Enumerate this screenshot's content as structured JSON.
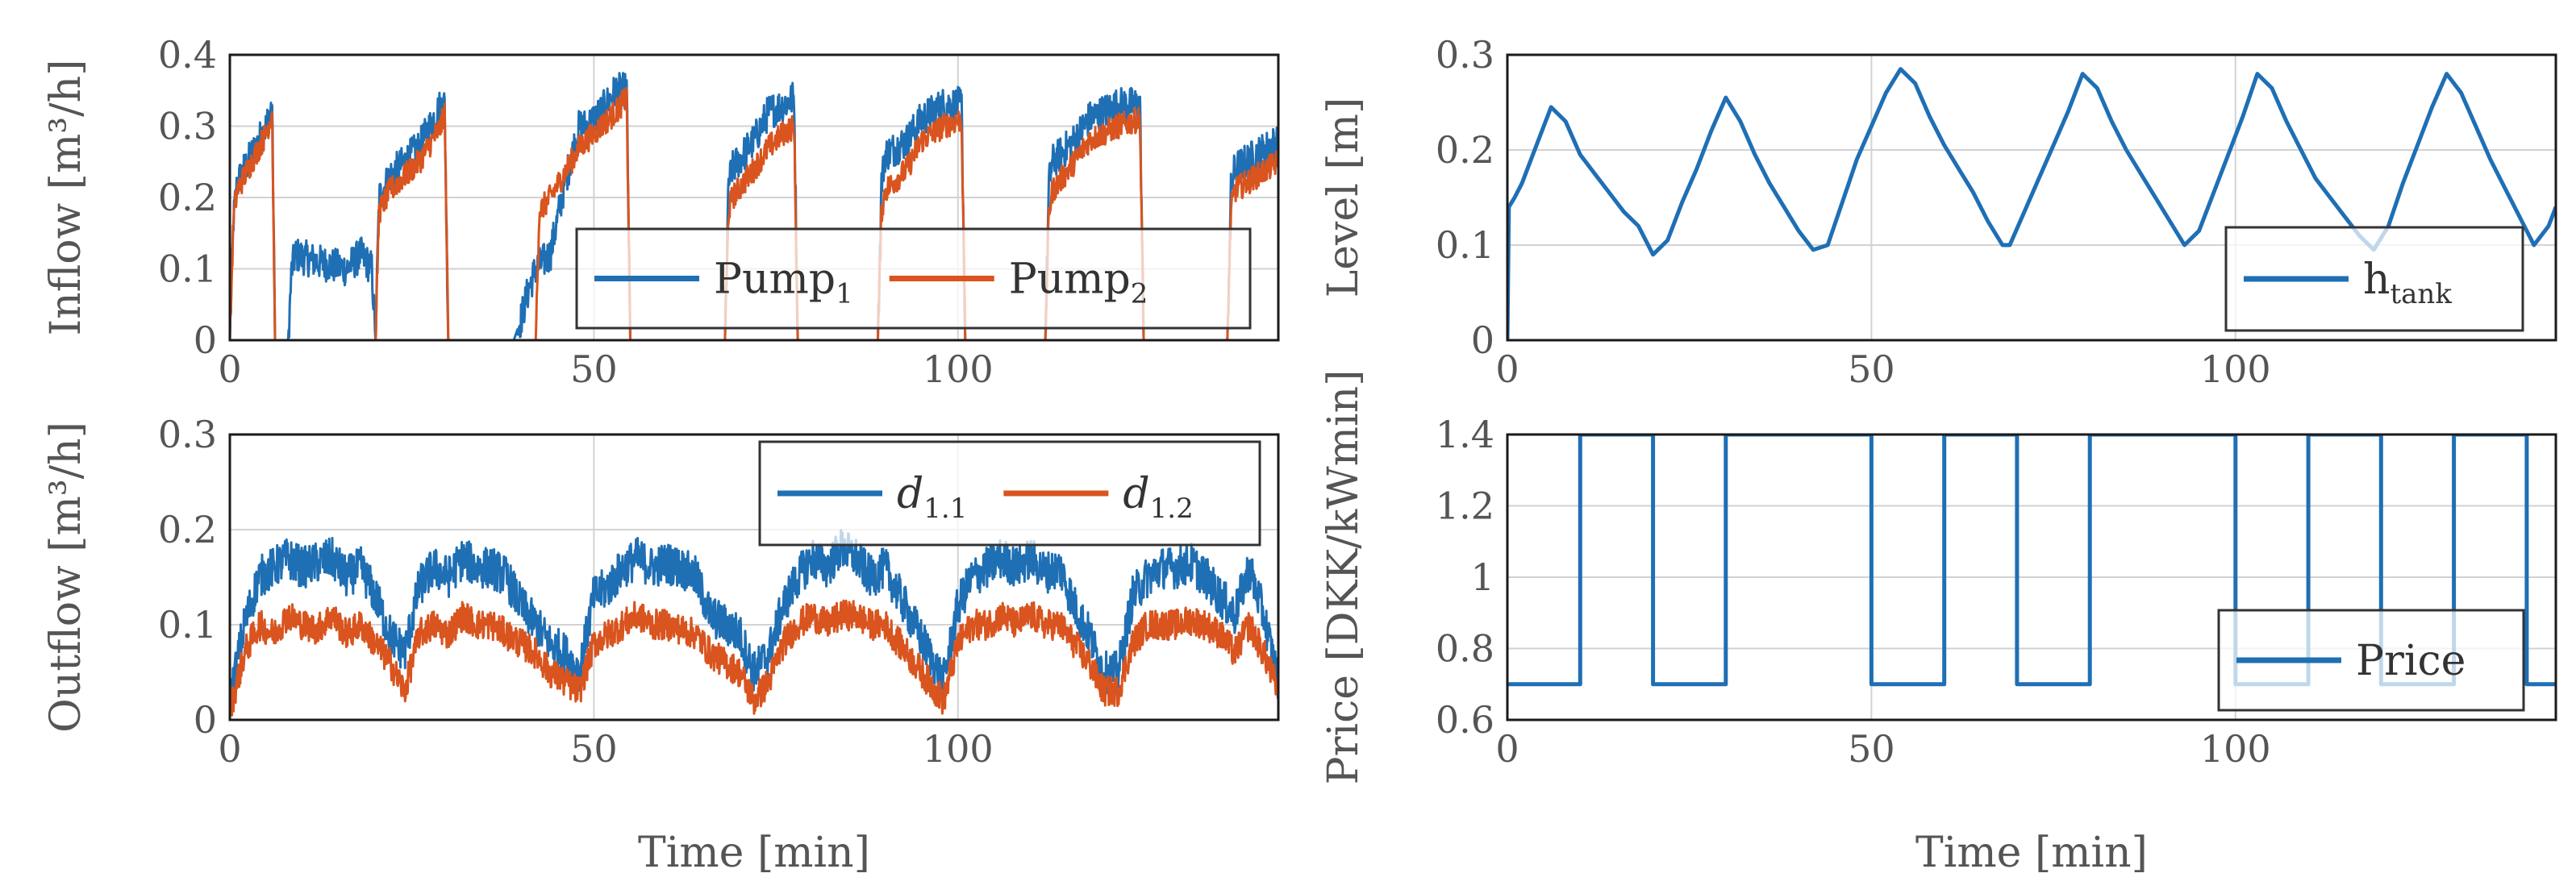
{
  "colors": {
    "blue": "#1f6fb4",
    "orange": "#d9541e"
  },
  "chart_data": [
    {
      "type": "line",
      "id": "inflow",
      "xlabel": "",
      "ylabel": "Inflow [m³/h]",
      "xlim": [
        0,
        144
      ],
      "ylim": [
        0,
        0.4
      ],
      "xticks": [
        "0",
        "50",
        "100"
      ],
      "yticks": [
        "0",
        "0.1",
        "0.2",
        "0.3",
        "0.4"
      ],
      "legend": {
        "position": "center-right",
        "entries": [
          {
            "base": "Pump",
            "sub": "1"
          },
          {
            "base": "Pump",
            "sub": "2"
          }
        ]
      },
      "series": [
        {
          "name": "Pump1",
          "color": "#1f6fb4",
          "x": [
            0,
            0.5,
            1,
            5,
            5.8,
            6.2,
            8,
            8.5,
            9,
            12,
            16,
            18,
            19.5,
            20,
            20.5,
            22,
            26,
            29,
            29.5,
            30,
            39,
            40,
            41,
            42,
            44,
            46,
            48,
            49,
            51,
            53,
            54.5,
            55,
            55.5,
            68,
            68.5,
            69,
            72,
            74,
            76,
            77.5,
            78,
            78.5,
            89,
            89.5,
            90,
            93,
            95,
            98,
            100.5,
            101,
            101.5,
            112,
            112.5,
            113,
            116,
            118,
            122,
            125,
            125.5,
            126,
            137,
            137.5,
            138,
            141,
            144
          ],
          "y": [
            0,
            0.17,
            0.22,
            0.3,
            0.33,
            0,
            0,
            0.1,
            0.12,
            0.11,
            0.1,
            0.12,
            0.1,
            0,
            0.2,
            0.23,
            0.27,
            0.33,
            0.33,
            0,
            0,
            0.03,
            0.07,
            0.1,
            0.12,
            0.22,
            0.3,
            0.3,
            0.32,
            0.35,
            0.35,
            0,
            0,
            0,
            0.22,
            0.24,
            0.28,
            0.32,
            0.33,
            0.34,
            0,
            0,
            0,
            0.22,
            0.26,
            0.28,
            0.31,
            0.33,
            0.33,
            0,
            0,
            0,
            0.22,
            0.25,
            0.28,
            0.31,
            0.33,
            0.33,
            0,
            0,
            0,
            0.21,
            0.24,
            0.26,
            0.28
          ],
          "noise": 0.025
        },
        {
          "name": "Pump2",
          "color": "#d9541e",
          "x": [
            0,
            0.5,
            1,
            5,
            5.8,
            6.2,
            20,
            20.5,
            22,
            26,
            29,
            29.5,
            30,
            42,
            42.5,
            44,
            48,
            51,
            53,
            54.5,
            55,
            55.5,
            68,
            68.5,
            69,
            72,
            74,
            76,
            77.5,
            78,
            78.5,
            89,
            89.5,
            90,
            93,
            95,
            98,
            100.5,
            101,
            101.5,
            112,
            112.5,
            113,
            116,
            118,
            122,
            125,
            125.5,
            126,
            137,
            137.5,
            138,
            141,
            144
          ],
          "y": [
            0,
            0.17,
            0.21,
            0.29,
            0.32,
            0,
            0,
            0.18,
            0.21,
            0.25,
            0.3,
            0.32,
            0,
            0,
            0.18,
            0.2,
            0.27,
            0.3,
            0.32,
            0.34,
            0,
            0,
            0,
            0.18,
            0.2,
            0.24,
            0.27,
            0.29,
            0.3,
            0,
            0,
            0,
            0.18,
            0.21,
            0.24,
            0.28,
            0.3,
            0.31,
            0,
            0,
            0,
            0.18,
            0.21,
            0.25,
            0.28,
            0.3,
            0.31,
            0,
            0,
            0,
            0.18,
            0.21,
            0.23,
            0.25
          ],
          "noise": 0.018
        }
      ]
    },
    {
      "type": "line",
      "id": "level",
      "xlabel": "",
      "ylabel": "Level [m]",
      "xlim": [
        0,
        144
      ],
      "ylim": [
        0,
        0.3
      ],
      "xticks": [
        "0",
        "50",
        "100"
      ],
      "yticks": [
        "0",
        "0.1",
        "0.2",
        "0.3"
      ],
      "legend": {
        "position": "bottom-right",
        "entries": [
          {
            "base": "h",
            "sub": "tank"
          }
        ]
      },
      "series": [
        {
          "name": "htank",
          "color": "#1f6fb4",
          "x": [
            0,
            0.2,
            0.6,
            1,
            2,
            4,
            6,
            8,
            10,
            12,
            14,
            16,
            18,
            20,
            22,
            24,
            26,
            28,
            30,
            32,
            34,
            36,
            38,
            40,
            42,
            44,
            46,
            48,
            50,
            52,
            54,
            56,
            58,
            60,
            62,
            64,
            66,
            68,
            69,
            71,
            73,
            75,
            77,
            79,
            81,
            83,
            85,
            87,
            89,
            91,
            93,
            95,
            97,
            99,
            101,
            103,
            105,
            107,
            109,
            111,
            113,
            115,
            117,
            119,
            121,
            123,
            125,
            127,
            129,
            131,
            133,
            135,
            137,
            139,
            141,
            143,
            144
          ],
          "y": [
            0,
            0.14,
            0.145,
            0.15,
            0.165,
            0.205,
            0.245,
            0.23,
            0.195,
            0.175,
            0.155,
            0.135,
            0.12,
            0.09,
            0.105,
            0.145,
            0.18,
            0.22,
            0.255,
            0.23,
            0.195,
            0.165,
            0.14,
            0.115,
            0.095,
            0.1,
            0.145,
            0.19,
            0.225,
            0.26,
            0.285,
            0.27,
            0.235,
            0.205,
            0.18,
            0.155,
            0.125,
            0.1,
            0.1,
            0.135,
            0.17,
            0.205,
            0.24,
            0.28,
            0.265,
            0.23,
            0.2,
            0.175,
            0.15,
            0.125,
            0.1,
            0.115,
            0.155,
            0.195,
            0.235,
            0.28,
            0.265,
            0.23,
            0.2,
            0.17,
            0.15,
            0.13,
            0.11,
            0.095,
            0.12,
            0.165,
            0.205,
            0.245,
            0.28,
            0.26,
            0.225,
            0.19,
            0.16,
            0.13,
            0.1,
            0.12,
            0.14
          ],
          "noise": 0
        }
      ]
    },
    {
      "type": "line",
      "id": "outflow",
      "xlabel": "Time [min]",
      "ylabel": "Outflow [m³/h]",
      "xlim": [
        0,
        144
      ],
      "ylim": [
        0,
        0.3
      ],
      "xticks": [
        "0",
        "50",
        "100"
      ],
      "yticks": [
        "0",
        "0.1",
        "0.2",
        "0.3"
      ],
      "legend": {
        "position": "top-right",
        "entries": [
          {
            "base": "d",
            "sub": "1.1"
          },
          {
            "base": "d",
            "sub": "1.2"
          }
        ]
      },
      "series": [
        {
          "name": "d1.1",
          "color": "#1f6fb4",
          "x": [
            0,
            2,
            4,
            6,
            8,
            10,
            12,
            14,
            16,
            18,
            20,
            22,
            24,
            26,
            28,
            30,
            32,
            34,
            36,
            38,
            40,
            42,
            44,
            46,
            48,
            50,
            52,
            54,
            56,
            58,
            60,
            62,
            64,
            66,
            68,
            70,
            72,
            74,
            76,
            78,
            80,
            82,
            84,
            86,
            88,
            90,
            92,
            94,
            96,
            98,
            100,
            102,
            104,
            106,
            108,
            110,
            112,
            114,
            116,
            118,
            120,
            122,
            124,
            126,
            128,
            130,
            132,
            134,
            136,
            138,
            140,
            142,
            144
          ],
          "y": [
            0.02,
            0.1,
            0.15,
            0.16,
            0.17,
            0.16,
            0.165,
            0.17,
            0.15,
            0.16,
            0.13,
            0.09,
            0.07,
            0.14,
            0.16,
            0.15,
            0.17,
            0.16,
            0.16,
            0.15,
            0.12,
            0.1,
            0.08,
            0.07,
            0.05,
            0.13,
            0.14,
            0.16,
            0.17,
            0.16,
            0.165,
            0.16,
            0.15,
            0.11,
            0.1,
            0.09,
            0.05,
            0.07,
            0.12,
            0.15,
            0.17,
            0.16,
            0.18,
            0.17,
            0.15,
            0.16,
            0.13,
            0.1,
            0.07,
            0.04,
            0.12,
            0.15,
            0.16,
            0.17,
            0.16,
            0.17,
            0.155,
            0.16,
            0.12,
            0.09,
            0.05,
            0.05,
            0.13,
            0.15,
            0.16,
            0.16,
            0.165,
            0.15,
            0.13,
            0.11,
            0.16,
            0.11,
            0.04
          ],
          "noise": 0.022
        },
        {
          "name": "d1.2",
          "color": "#d9541e",
          "x": [
            0,
            2,
            4,
            6,
            8,
            10,
            12,
            14,
            16,
            18,
            20,
            22,
            24,
            26,
            28,
            30,
            32,
            34,
            36,
            38,
            40,
            42,
            44,
            46,
            48,
            50,
            52,
            54,
            56,
            58,
            60,
            62,
            64,
            66,
            68,
            70,
            72,
            74,
            76,
            78,
            80,
            82,
            84,
            86,
            88,
            90,
            92,
            94,
            96,
            98,
            100,
            102,
            104,
            106,
            108,
            110,
            112,
            114,
            116,
            118,
            120,
            122,
            124,
            126,
            128,
            130,
            132,
            134,
            136,
            138,
            140,
            142,
            144
          ],
          "y": [
            0.01,
            0.07,
            0.1,
            0.09,
            0.11,
            0.1,
            0.095,
            0.11,
            0.09,
            0.1,
            0.08,
            0.06,
            0.03,
            0.09,
            0.1,
            0.09,
            0.11,
            0.1,
            0.1,
            0.09,
            0.08,
            0.07,
            0.05,
            0.04,
            0.03,
            0.08,
            0.09,
            0.1,
            0.11,
            0.1,
            0.1,
            0.095,
            0.09,
            0.07,
            0.06,
            0.05,
            0.02,
            0.04,
            0.08,
            0.1,
            0.11,
            0.1,
            0.11,
            0.11,
            0.1,
            0.1,
            0.08,
            0.06,
            0.04,
            0.02,
            0.08,
            0.1,
            0.1,
            0.11,
            0.1,
            0.11,
            0.1,
            0.1,
            0.08,
            0.06,
            0.03,
            0.03,
            0.08,
            0.1,
            0.1,
            0.1,
            0.105,
            0.1,
            0.09,
            0.07,
            0.1,
            0.07,
            0.03
          ],
          "noise": 0.016
        }
      ]
    },
    {
      "type": "line",
      "id": "price",
      "xlabel": "Time [min]",
      "ylabel": "Price [DKK/kWmin]",
      "xlim": [
        0,
        144
      ],
      "ylim": [
        0.6,
        1.4
      ],
      "xticks": [
        "0",
        "50",
        "100"
      ],
      "yticks": [
        "0.6",
        "0.8",
        "1",
        "1.2",
        "1.4"
      ],
      "legend": {
        "position": "bottom-right",
        "entries": [
          {
            "base": "Price",
            "sub": ""
          }
        ]
      },
      "series": [
        {
          "name": "Price",
          "color": "#1f6fb4",
          "x": [
            0,
            10,
            10,
            20,
            20,
            30,
            30,
            50,
            50,
            60,
            60,
            70,
            70,
            80,
            80,
            100,
            100,
            110,
            110,
            120,
            120,
            130,
            130,
            140,
            140,
            144
          ],
          "y": [
            0.7,
            0.7,
            1.4,
            1.4,
            0.7,
            0.7,
            1.4,
            1.4,
            0.7,
            0.7,
            1.4,
            1.4,
            0.7,
            0.7,
            1.4,
            1.4,
            0.7,
            0.7,
            1.4,
            1.4,
            0.7,
            0.7,
            1.4,
            1.4,
            0.7,
            0.7
          ],
          "noise": 0
        }
      ]
    }
  ]
}
